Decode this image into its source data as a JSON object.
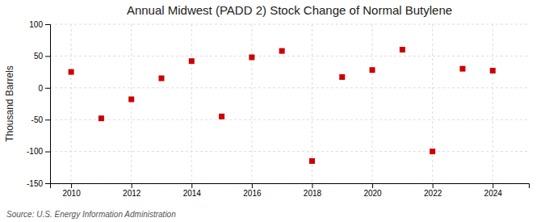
{
  "chart_data": {
    "type": "scatter",
    "title": "Annual Midwest (PADD 2) Stock Change of Normal Butylene",
    "ylabel": "Thousand Barrels",
    "source": "Source: U.S. Energy Information Administration",
    "x": [
      2010,
      2011,
      2012,
      2013,
      2014,
      2015,
      2016,
      2017,
      2018,
      2019,
      2020,
      2021,
      2022,
      2023,
      2024
    ],
    "values": [
      25,
      -48,
      -18,
      15,
      42,
      -45,
      48,
      58,
      -115,
      17,
      28,
      60,
      -100,
      30,
      27
    ],
    "color": "#cc0000",
    "marker": "square",
    "xlim": [
      2009.3,
      2025.2
    ],
    "ylim": [
      -150,
      100
    ],
    "xticks": [
      2010,
      2012,
      2014,
      2016,
      2018,
      2020,
      2022,
      2024
    ],
    "yticks": [
      -150,
      -100,
      -50,
      0,
      50,
      100
    ],
    "grid": true
  }
}
